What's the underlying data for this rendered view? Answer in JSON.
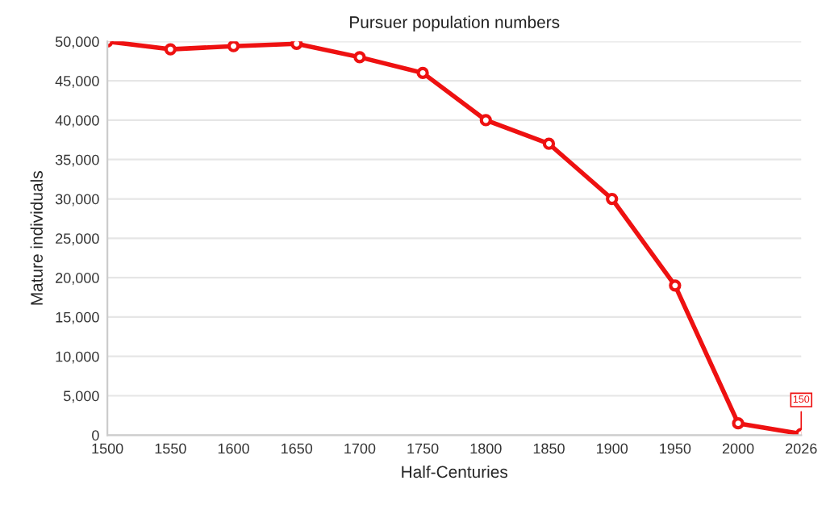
{
  "chart_data": {
    "type": "line",
    "title": "Pursuer population numbers",
    "xlabel": "Half-Centuries",
    "ylabel": "Mature individuals",
    "categories": [
      "1500",
      "1550",
      "1600",
      "1650",
      "1700",
      "1750",
      "1800",
      "1850",
      "1900",
      "1950",
      "2000",
      "2026"
    ],
    "series": [
      {
        "color": "#ee1111",
        "values": [
          50000,
          49000,
          49400,
          49700,
          48000,
          46000,
          40000,
          37000,
          30000,
          19000,
          1500,
          150
        ]
      }
    ],
    "ylim": [
      0,
      50000
    ],
    "yticks": [
      {
        "value": 0,
        "label": "0"
      },
      {
        "value": 5000,
        "label": "5,000"
      },
      {
        "value": 10000,
        "label": "10,000"
      },
      {
        "value": 15000,
        "label": "15,000"
      },
      {
        "value": 20000,
        "label": "20,000"
      },
      {
        "value": 25000,
        "label": "25,000"
      },
      {
        "value": 30000,
        "label": "30,000"
      },
      {
        "value": 35000,
        "label": "35,000"
      },
      {
        "value": 40000,
        "label": "40,000"
      },
      {
        "value": 45000,
        "label": "45,000"
      },
      {
        "value": 50000,
        "label": "50,000"
      }
    ],
    "annotations": [
      {
        "text": "150",
        "x": "2026",
        "y": 150
      }
    ],
    "grid": "y",
    "marker": "circle",
    "line_style": "solid",
    "legend": false
  }
}
